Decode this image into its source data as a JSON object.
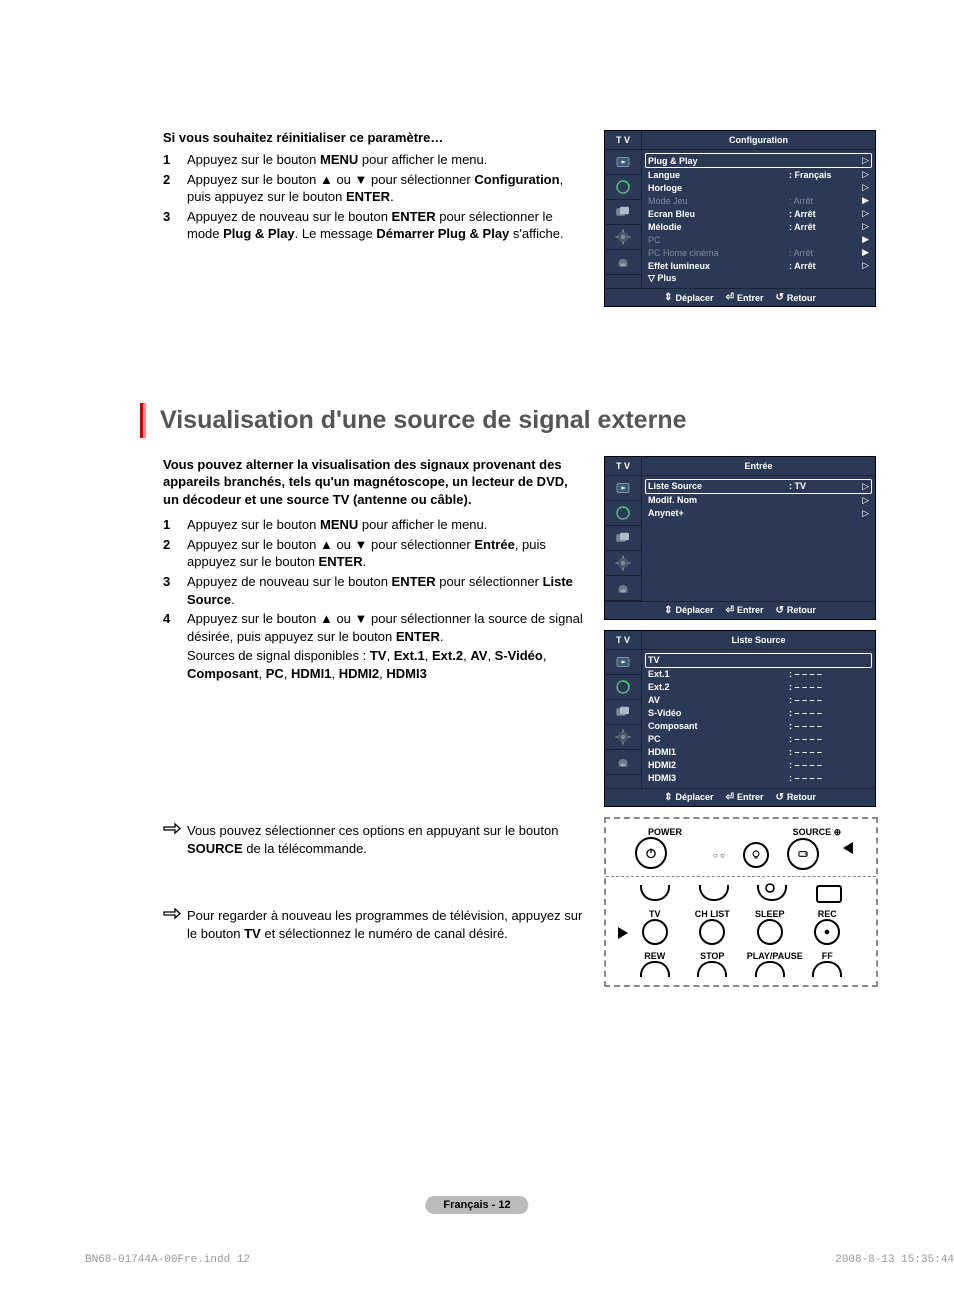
{
  "reset": {
    "title": "Si vous souhaitez réinitialiser ce paramètre…",
    "s1": "Appuyez sur le bouton <b>MENU</b> pour afficher le menu.",
    "s2": "Appuyez sur le bouton ▲ ou ▼ pour sélectionner <b>Configuration</b>, puis appuyez sur le bouton <b>ENTER</b>.",
    "s3": "Appuyez de nouveau sur le bouton <b>ENTER</b> pour sélectionner le mode <b>Plug & Play</b>. Le message <b>Démarrer Plug & Play</b> s'affiche."
  },
  "heading": "Visualisation d'une source de signal externe",
  "intro": "Vous pouvez alterner la visualisation des signaux provenant des appareils branchés, tels qu'un magnétoscope, un lecteur de DVD, un décodeur et une source TV (antenne ou câble).",
  "ext": {
    "s1": "Appuyez sur le bouton <b>MENU</b> pour afficher le menu.",
    "s2": "Appuyez sur le bouton ▲ ou ▼ pour sélectionner <b>Entrée</b>, puis appuyez sur le bouton <b>ENTER</b>.",
    "s3": "Appuyez de nouveau sur le bouton <b>ENTER</b> pour sélectionner <b>Liste Source</b>.",
    "s4": "Appuyez sur le bouton ▲ ou ▼ pour sélectionner la source de signal désirée, puis appuyez sur le bouton <b>ENTER</b>.",
    "avail": "Sources de signal disponibles : <b>TV</b>, <b>Ext.1</b>, <b>Ext.2</b>, <b>AV</b>, <b>S-Vidéo</b>, <b>Composant</b>, <b>PC</b>, <b>HDMI1</b>, <b>HDMI2</b>, <b>HDMI3</b>"
  },
  "note1": "Vous pouvez sélectionner ces options en appuyant sur le bouton <b>SOURCE</b> de la télécommande.",
  "note2": "Pour regarder à nouveau les programmes de télévision, appuyez sur le bouton <b>TV</b> et sélectionnez le numéro de canal désiré.",
  "pageBadge": "Français - 12",
  "footerLeft": "BN68-01744A-00Fre.indd   12",
  "footerRight": "2008-8-13   15:35:44",
  "osd": {
    "tv": "T V",
    "foot": {
      "move": "Déplacer",
      "enter": "Entrer",
      "return": "Retour"
    }
  },
  "osdConfig": {
    "title": "Configuration",
    "rows": [
      {
        "lbl": "Plug & Play",
        "val": "",
        "sel": true,
        "chev": "▷"
      },
      {
        "lbl": "Langue",
        "val": ": Français",
        "chev": "▷"
      },
      {
        "lbl": "Horloge",
        "val": "",
        "chev": "▷"
      },
      {
        "lbl": "Mode Jeu",
        "val": ": Arrêt",
        "dim": true,
        "chev": "▶"
      },
      {
        "lbl": "Ecran Bleu",
        "val": ": Arrêt",
        "chev": "▷"
      },
      {
        "lbl": "Mélodie",
        "val": ": Arrêt",
        "chev": "▷"
      },
      {
        "lbl": "PC",
        "val": "",
        "dim": true,
        "chev": "▶"
      },
      {
        "lbl": "PC Home cinéma",
        "val": ": Arrêt",
        "dim": true,
        "chev": "▶"
      },
      {
        "lbl": "Effet lumineux",
        "val": ": Arrêt",
        "chev": "▷"
      },
      {
        "lbl": "▽ Plus",
        "val": "",
        "plus": true
      }
    ]
  },
  "osdEntry": {
    "title": "Entrée",
    "rows": [
      {
        "lbl": "Liste Source",
        "val": ": TV",
        "sel": true,
        "chev": "▷"
      },
      {
        "lbl": "Modif. Nom",
        "val": "",
        "chev": "▷"
      },
      {
        "lbl": "Anynet+",
        "val": "",
        "chev": "▷"
      }
    ]
  },
  "osdSource": {
    "title": "Liste Source",
    "rows": [
      {
        "lbl": "TV",
        "val": "",
        "sel": true
      },
      {
        "lbl": "Ext.1",
        "val": ": – – – –"
      },
      {
        "lbl": "Ext.2",
        "val": ": – – – –"
      },
      {
        "lbl": "AV",
        "val": ": – – – –"
      },
      {
        "lbl": "S-Vidéo",
        "val": ": – – – –"
      },
      {
        "lbl": "Composant",
        "val": ": – – – –"
      },
      {
        "lbl": "PC",
        "val": ": – – – –"
      },
      {
        "lbl": "HDMI1",
        "val": ": – – – –"
      },
      {
        "lbl": "HDMI2",
        "val": ": – – – –"
      },
      {
        "lbl": "HDMI3",
        "val": ": – – – –"
      }
    ]
  },
  "remote": {
    "power": "POWER",
    "source": "SOURCE",
    "tv": "TV",
    "chlist": "CH LIST",
    "sleep": "SLEEP",
    "rec": "REC",
    "rew": "REW",
    "stop": "STOP",
    "play": "PLAY/PAUSE",
    "ff": "FF"
  }
}
